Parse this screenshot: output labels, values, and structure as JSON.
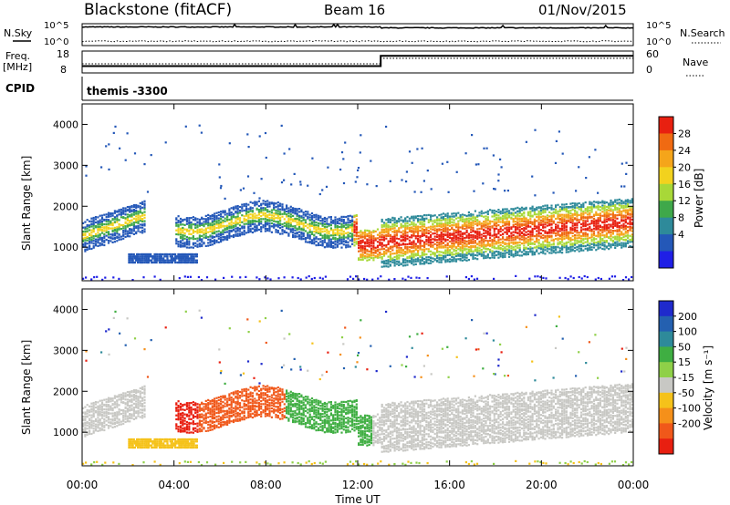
{
  "header": {
    "station": "Blackstone (fitACF)",
    "beam": "Beam 16",
    "date": "01/Nov/2015"
  },
  "top_panel": {
    "nsky_label": "N.Sky",
    "nsky_ticks": [
      "10^5",
      "10^0"
    ],
    "nsearch_label": "N.Search",
    "nsearch_ticks": [
      "10^5",
      "10^0"
    ],
    "freq_label_line1": "Freq.",
    "freq_label_line2": "[MHz]",
    "freq_ticks": [
      "18",
      "8"
    ],
    "nave_label": "Nave",
    "nave_ticks": [
      "60",
      "0"
    ],
    "cpid_label": "CPID",
    "cpid_text": "themis -3300"
  },
  "x_axis": {
    "label": "Time UT",
    "ticks": [
      "00:00",
      "04:00",
      "08:00",
      "12:00",
      "16:00",
      "20:00",
      "00:00"
    ]
  },
  "power_panel": {
    "ylabel": "Slant Range [km]",
    "yticks": [
      "1000",
      "2000",
      "3000",
      "4000"
    ],
    "colorbar_label": "Power [dB]",
    "colorbar_ticks": [
      "4",
      "8",
      "12",
      "16",
      "20",
      "24",
      "28"
    ],
    "colors": [
      "#1f1fe6",
      "#2458b8",
      "#2e8a9a",
      "#3fa84a",
      "#a8d838",
      "#f2d21e",
      "#f5a51a",
      "#f06a12",
      "#e82010"
    ]
  },
  "velocity_panel": {
    "ylabel": "Slant Range [km]",
    "yticks": [
      "1000",
      "2000",
      "3000",
      "4000"
    ],
    "colorbar_label": "Velocity [m s⁻¹]",
    "colorbar_ticks": [
      "200",
      "100",
      "50",
      "15",
      "-15",
      "-50",
      "-100",
      "-200"
    ],
    "colors": [
      "#1f2acc",
      "#2460b0",
      "#2e8a9a",
      "#3fae42",
      "#8fd048",
      "#c8c8c4",
      "#f5c21a",
      "#f5901a",
      "#f0581a",
      "#e81f10"
    ]
  },
  "chart_data": {
    "type": "heatmap",
    "time_range_hours": [
      0,
      24
    ],
    "range_km": [
      180,
      4500
    ],
    "nsky_series": [
      {
        "t": 0,
        "v": 5.2
      },
      {
        "t": 2,
        "v": 5.0
      },
      {
        "t": 4,
        "v": 5.1
      },
      {
        "t": 6,
        "v": 4.9
      },
      {
        "t": 8,
        "v": 5.0
      },
      {
        "t": 10,
        "v": 5.2
      },
      {
        "t": 12,
        "v": 5.0
      },
      {
        "t": 13,
        "v": 4.8
      },
      {
        "t": 16,
        "v": 4.9
      },
      {
        "t": 20,
        "v": 4.8
      },
      {
        "t": 24,
        "v": 4.9
      }
    ],
    "frequency_mhz": [
      {
        "t": 0,
        "v": 10.5
      },
      {
        "t": 13,
        "v": 10.5
      },
      {
        "t": 13,
        "v": 16.8
      },
      {
        "t": 24,
        "v": 16.8
      }
    ],
    "power_features": [
      {
        "name": "early_band",
        "t0": 0.0,
        "t1": 2.7,
        "r0": 1100,
        "r1": 2200
      },
      {
        "name": "mid_band",
        "t0": 4.0,
        "t1": 12.0,
        "r0": 1350,
        "r1": 2200
      },
      {
        "name": "dip",
        "t0": 11.8,
        "t1": 13.0,
        "r0": 800,
        "r1": 1900
      },
      {
        "name": "late_band",
        "t0": 13.0,
        "t1": 24.0,
        "r0": 950,
        "r1": 2600
      },
      {
        "name": "low_echo",
        "t0": 2.0,
        "t1": 5.0,
        "r0": 650,
        "r1": 900
      },
      {
        "name": "ground",
        "t0": 0.0,
        "t1": 24.0,
        "r0": 200,
        "r1": 320
      }
    ],
    "velocity_features": [
      {
        "name": "grey_early",
        "t0": 0.0,
        "t1": 2.7,
        "value": 0
      },
      {
        "name": "red_arc",
        "t0": 4.0,
        "t1": 5.0,
        "value": -150
      },
      {
        "name": "orange_arc",
        "t0": 5.0,
        "t1": 8.8,
        "value": -60
      },
      {
        "name": "green_mid",
        "t0": 8.8,
        "t1": 12.6,
        "value": 60
      },
      {
        "name": "grey_late",
        "t0": 13.0,
        "t1": 24.0,
        "value": 0
      },
      {
        "name": "orange_low",
        "t0": 2.0,
        "t1": 5.0,
        "value": -60
      }
    ]
  }
}
